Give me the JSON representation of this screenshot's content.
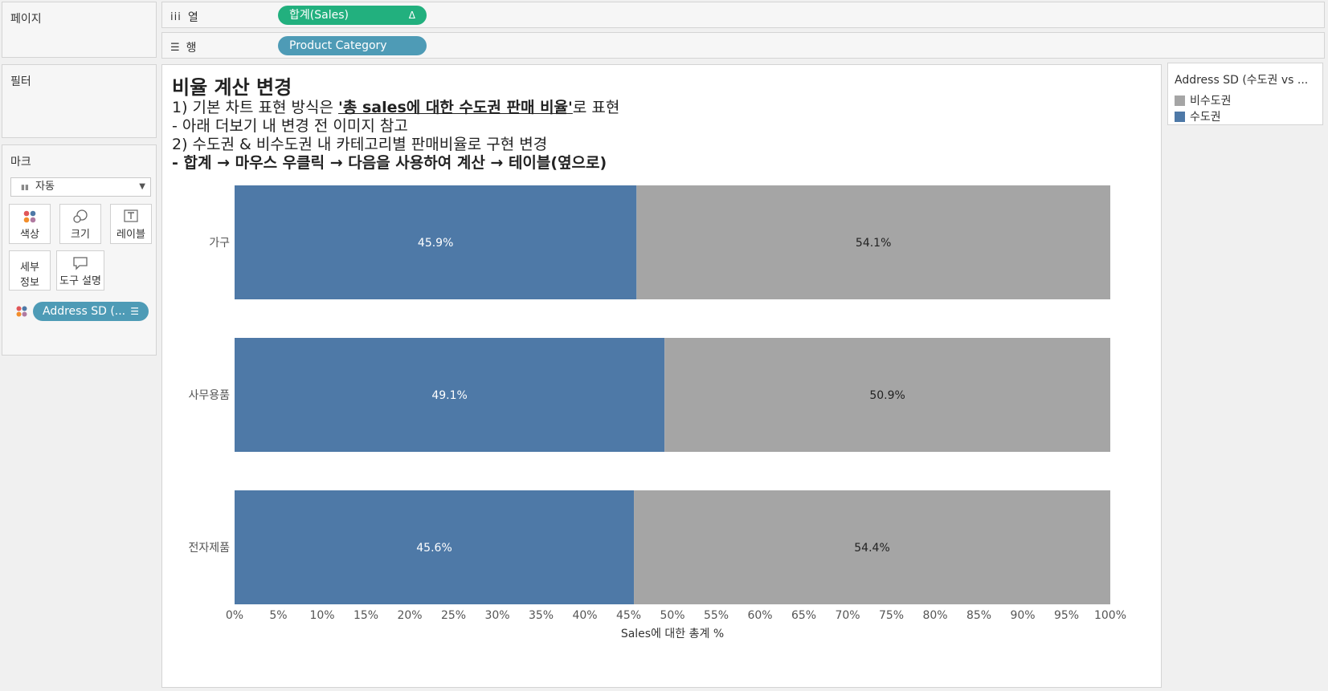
{
  "pages_panel": {
    "title": "페이지"
  },
  "filters_panel": {
    "title": "필터"
  },
  "marks_panel": {
    "title": "마크",
    "mark_type": "자동",
    "buttons": {
      "color": "색상",
      "size": "크기",
      "label": "레이블",
      "detail_1": "세부",
      "detail_2": "정보",
      "tooltip": "도구 설명"
    },
    "color_field": "Address SD (..."
  },
  "columns_shelf": {
    "label": "열",
    "pill": "합계(Sales)",
    "pill_flag": "Δ"
  },
  "rows_shelf": {
    "label": "행",
    "pill": "Product Category"
  },
  "sheet": {
    "title": "비율 계산 변경",
    "line1_prefix": "1) 기본 차트 표현 방식은 ",
    "line1_emph": "'총 sales에 대한 수도권 판매 비율'",
    "line1_suffix": "로 표현",
    "line2": "- 아래 더보기 내 변경 전 이미지 참고",
    "line3": "2) 수도권 & 비수도권 내 카테고리별 판매비율로 구현 변경",
    "line4": "- 합계 → 마우스 우클릭 → 다음을 사용하여 계산 → 테이블(옆으로)"
  },
  "legend": {
    "title": "Address SD (수도권 vs ...",
    "items": [
      {
        "label": "비수도권",
        "color": "#a5a5a5"
      },
      {
        "label": "수도권",
        "color": "#4e79a7"
      }
    ]
  },
  "chart_data": {
    "type": "bar",
    "orientation": "horizontal",
    "stacked": true,
    "categories": [
      "가구",
      "사무용품",
      "전자제품"
    ],
    "series": [
      {
        "name": "수도권",
        "color": "#4e79a7",
        "values": [
          45.9,
          49.1,
          45.6
        ],
        "labels": [
          "45.9%",
          "49.1%",
          "45.6%"
        ]
      },
      {
        "name": "비수도권",
        "color": "#a5a5a5",
        "values": [
          54.1,
          50.9,
          54.4
        ],
        "labels": [
          "54.1%",
          "50.9%",
          "54.4%"
        ]
      }
    ],
    "xlabel": "Sales에 대한 총계 %",
    "xlim": [
      0,
      100
    ],
    "xticks": [
      "0%",
      "5%",
      "10%",
      "15%",
      "20%",
      "25%",
      "30%",
      "35%",
      "40%",
      "45%",
      "50%",
      "55%",
      "60%",
      "65%",
      "70%",
      "75%",
      "80%",
      "85%",
      "90%",
      "95%",
      "100%"
    ],
    "grid": false
  }
}
